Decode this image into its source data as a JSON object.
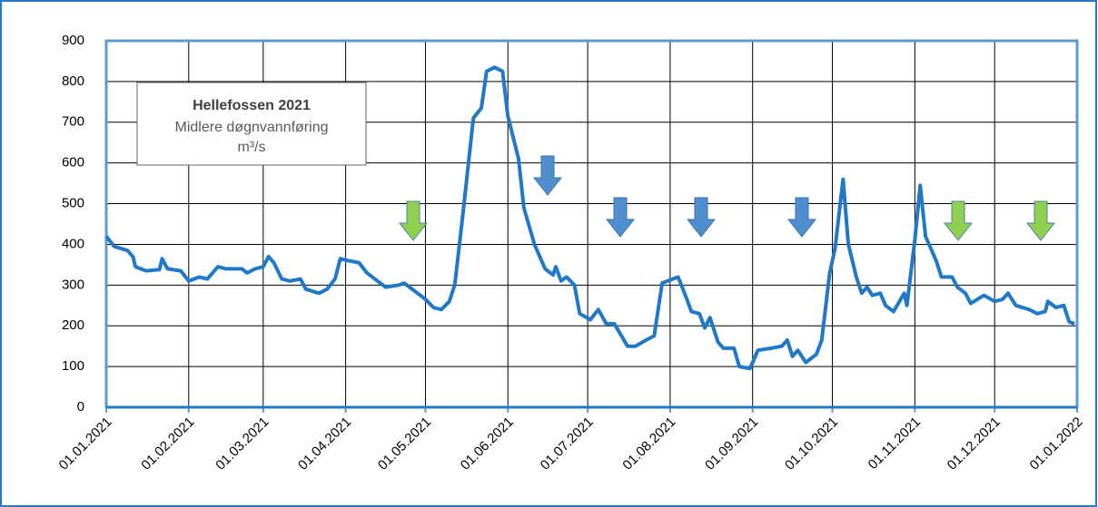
{
  "chart_data": {
    "type": "line",
    "title": "Hellefossen 2021",
    "subtitle": "Midlere døgnvannføring",
    "unit": "m³/s",
    "x": [
      "01.01.2021",
      "04.01.2021",
      "09.01.2021",
      "11.01.2021",
      "12.01.2021",
      "16.01.2021",
      "21.01.2021",
      "22.01.2021",
      "24.01.2021",
      "29.01.2021",
      "01.02.2021",
      "05.02.2021",
      "08.02.2021",
      "12.02.2021",
      "15.02.2021",
      "21.02.2021",
      "23.02.2021",
      "26.02.2021",
      "01.03.2021",
      "03.03.2021",
      "05.03.2021",
      "08.03.2021",
      "11.03.2021",
      "15.03.2021",
      "17.03.2021",
      "22.03.2021",
      "25.03.2021",
      "28.03.2021",
      "30.03.2021",
      "02.04.2021",
      "06.04.2021",
      "09.04.2021",
      "13.04.2021",
      "16.04.2021",
      "21.04.2021",
      "23.04.2021",
      "26.04.2021",
      "01.05.2021",
      "04.05.2021",
      "07.05.2021",
      "10.05.2021",
      "12.05.2021",
      "15.05.2021",
      "19.05.2021",
      "22.05.2021",
      "24.05.2021",
      "27.05.2021",
      "30.05.2021",
      "01.06.2021",
      "05.06.2021",
      "07.06.2021",
      "11.06.2021",
      "15.06.2021",
      "18.06.2021",
      "19.06.2021",
      "21.06.2021",
      "23.06.2021",
      "26.06.2021",
      "28.06.2021",
      "02.07.2021",
      "05.07.2021",
      "08.07.2021",
      "11.07.2021",
      "16.07.2021",
      "19.07.2021",
      "23.07.2021",
      "26.07.2021",
      "29.07.2021",
      "02.08.2021",
      "04.08.2021",
      "07.08.2021",
      "09.08.2021",
      "12.08.2021",
      "14.08.2021",
      "16.08.2021",
      "19.08.2021",
      "21.08.2021",
      "25.08.2021",
      "27.08.2021",
      "31.08.2021",
      "03.09.2021",
      "08.09.2021",
      "12.09.2021",
      "14.09.2021",
      "16.09.2021",
      "18.09.2021",
      "21.09.2021",
      "25.09.2021",
      "27.09.2021",
      "30.09.2021",
      "02.10.2021",
      "05.10.2021",
      "07.10.2021",
      "10.10.2021",
      "12.10.2021",
      "14.10.2021",
      "16.10.2021",
      "19.10.2021",
      "21.10.2021",
      "24.10.2021",
      "28.10.2021",
      "29.10.2021",
      "01.11.2021",
      "03.11.2021",
      "05.11.2021",
      "09.11.2021",
      "11.11.2021",
      "15.11.2021",
      "17.11.2021",
      "20.11.2021",
      "22.11.2021",
      "27.11.2021",
      "01.12.2021",
      "04.12.2021",
      "06.12.2021",
      "09.12.2021",
      "14.12.2021",
      "17.12.2021",
      "20.12.2021",
      "21.12.2021",
      "24.12.2021",
      "27.12.2021",
      "29.12.2021",
      "31.12.2021"
    ],
    "series": [
      {
        "color": "#1f78c8",
        "values": [
          420,
          395,
          385,
          370,
          345,
          335,
          338,
          365,
          340,
          335,
          310,
          320,
          315,
          345,
          340,
          340,
          330,
          340,
          345,
          370,
          355,
          315,
          310,
          315,
          290,
          280,
          290,
          315,
          365,
          360,
          355,
          330,
          310,
          295,
          300,
          305,
          290,
          265,
          245,
          240,
          260,
          300,
          470,
          710,
          735,
          825,
          835,
          825,
          715,
          610,
          490,
          400,
          340,
          325,
          345,
          310,
          320,
          300,
          230,
          215,
          240,
          205,
          205,
          150,
          150,
          165,
          175,
          305,
          315,
          320,
          270,
          235,
          230,
          195,
          220,
          160,
          145,
          145,
          100,
          95,
          140,
          145,
          150,
          165,
          125,
          140,
          110,
          130,
          165,
          330,
          390,
          560,
          400,
          320,
          280,
          295,
          275,
          280,
          250,
          235,
          280,
          250,
          410,
          545,
          420,
          360,
          320,
          320,
          295,
          280,
          255,
          275,
          260,
          265,
          280,
          250,
          240,
          230,
          235,
          260,
          245,
          250,
          210,
          205
        ]
      }
    ],
    "xlim": [
      "01.01.2021",
      "01.01.2022"
    ],
    "xticks": [
      "01.01.2021",
      "01.02.2021",
      "01.03.2021",
      "01.04.2021",
      "01.05.2021",
      "01.06.2021",
      "01.07.2021",
      "01.08.2021",
      "01.09.2021",
      "01.10.2021",
      "01.11.2021",
      "01.12.2021",
      "01.01.2022"
    ],
    "ylim": [
      0,
      900
    ],
    "yticks": [
      0,
      100,
      200,
      300,
      400,
      500,
      600,
      700,
      800,
      900
    ],
    "grid": true
  }
}
